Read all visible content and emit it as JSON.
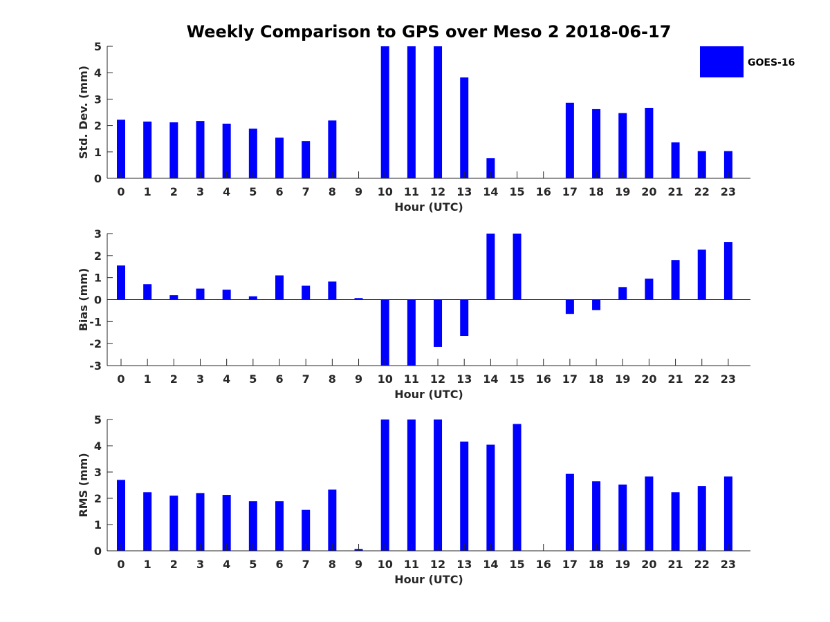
{
  "colors": {
    "bar": "#0000ff",
    "axis": "#262626"
  },
  "legend": {
    "label": "GOES-16"
  },
  "chart_data": [
    {
      "type": "bar",
      "title": "Weekly Comparison to GPS over Meso 2 2018-06-17",
      "xlabel": "Hour (UTC)",
      "ylabel": "Std. Dev. (mm)",
      "ylim": [
        0,
        5
      ],
      "yticks": [
        0,
        1,
        2,
        3,
        4,
        5
      ],
      "categories": [
        "0",
        "1",
        "2",
        "3",
        "4",
        "5",
        "6",
        "7",
        "8",
        "9",
        "10",
        "11",
        "12",
        "13",
        "14",
        "15",
        "16",
        "17",
        "18",
        "19",
        "20",
        "21",
        "22",
        "23"
      ],
      "series": [
        {
          "name": "GOES-16",
          "values": [
            2.22,
            2.15,
            2.12,
            2.17,
            2.07,
            1.88,
            1.54,
            1.41,
            2.19,
            null,
            5.5,
            5.5,
            5.5,
            3.82,
            0.76,
            null,
            null,
            2.86,
            2.62,
            2.47,
            2.67,
            1.36,
            1.03,
            1.03
          ]
        }
      ]
    },
    {
      "type": "bar",
      "title": "",
      "xlabel": "Hour (UTC)",
      "ylabel": "Bias (mm)",
      "ylim": [
        -3,
        3
      ],
      "yticks": [
        -3,
        -2,
        -1,
        0,
        1,
        2,
        3
      ],
      "categories": [
        "0",
        "1",
        "2",
        "3",
        "4",
        "5",
        "6",
        "7",
        "8",
        "9",
        "10",
        "11",
        "12",
        "13",
        "14",
        "15",
        "16",
        "17",
        "18",
        "19",
        "20",
        "21",
        "22",
        "23"
      ],
      "series": [
        {
          "name": "GOES-16",
          "values": [
            1.55,
            0.7,
            0.2,
            0.5,
            0.45,
            0.15,
            1.1,
            0.63,
            0.82,
            0.07,
            -3.5,
            -3.5,
            -2.15,
            -1.65,
            3.5,
            3.5,
            null,
            -0.65,
            -0.48,
            0.57,
            0.95,
            1.8,
            2.27,
            2.62
          ]
        }
      ]
    },
    {
      "type": "bar",
      "title": "",
      "xlabel": "Hour (UTC)",
      "ylabel": "RMS (mm)",
      "ylim": [
        0,
        5
      ],
      "yticks": [
        0,
        1,
        2,
        3,
        4,
        5
      ],
      "categories": [
        "0",
        "1",
        "2",
        "3",
        "4",
        "5",
        "6",
        "7",
        "8",
        "9",
        "10",
        "11",
        "12",
        "13",
        "14",
        "15",
        "16",
        "17",
        "18",
        "19",
        "20",
        "21",
        "22",
        "23"
      ],
      "series": [
        {
          "name": "GOES-16",
          "values": [
            2.7,
            2.23,
            2.1,
            2.2,
            2.13,
            1.89,
            1.89,
            1.56,
            2.33,
            0.07,
            5.5,
            5.5,
            5.5,
            4.16,
            4.04,
            4.83,
            null,
            2.93,
            2.65,
            2.52,
            2.83,
            2.23,
            2.47,
            2.83
          ]
        }
      ]
    }
  ]
}
